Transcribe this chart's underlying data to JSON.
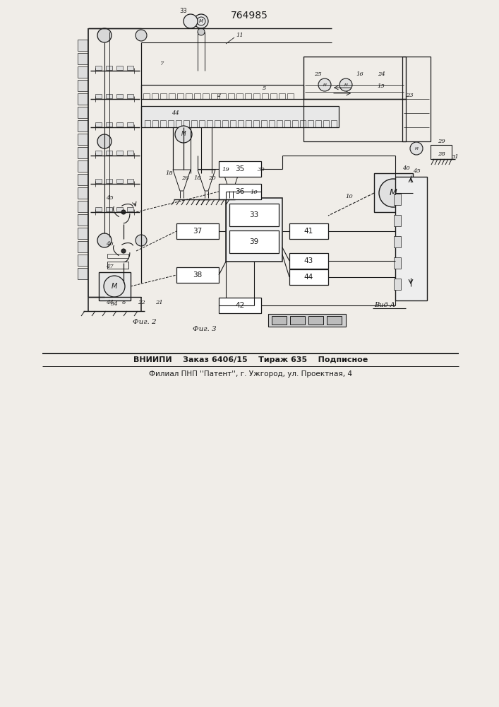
{
  "patent_number": "764985",
  "bg": "#f0ede8",
  "lc": "#1a1a1a",
  "footer1": "ВНИИПИ    Заказ 6406/15    Тираж 635    Подписное",
  "footer2": "Филиал ПНП ''Патент'', г. Ужгород, ул. Проектная, 4"
}
